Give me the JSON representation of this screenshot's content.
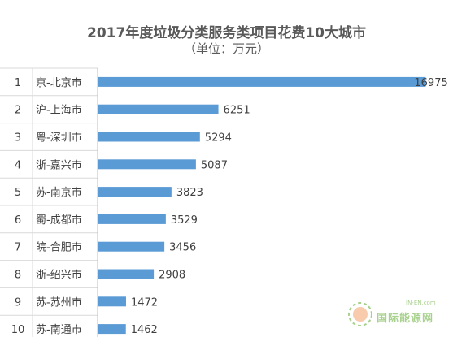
{
  "chart_data": {
    "type": "bar",
    "orientation": "horizontal",
    "title": "2017年度垃圾分类服务类项目花费10大城市",
    "subtitle": "（单位：万元）",
    "ranks": [
      "1",
      "2",
      "3",
      "4",
      "5",
      "6",
      "7",
      "8",
      "9",
      "10"
    ],
    "categories": [
      "京-北京市",
      "沪-上海市",
      "粤-深圳市",
      "浙-嘉兴市",
      "苏-南京市",
      "蜀-成都市",
      "皖-合肥市",
      "浙-绍兴市",
      "苏-苏州市",
      "苏-南通市"
    ],
    "values": [
      16975,
      6251,
      5294,
      5087,
      3823,
      3529,
      3456,
      2908,
      1472,
      1462
    ],
    "value_labels": [
      "16975",
      "6251",
      "5294",
      "5087",
      "3823",
      "3529",
      "3456",
      "2908",
      "1472",
      "1462"
    ],
    "xlim": [
      0,
      17000
    ],
    "grid": false,
    "legend": "none",
    "bar_color": "#5b9bd5",
    "label_color": "#404040"
  },
  "watermark": {
    "logo_text": "国际能源网",
    "logo_sub": "IN-EN.com"
  }
}
